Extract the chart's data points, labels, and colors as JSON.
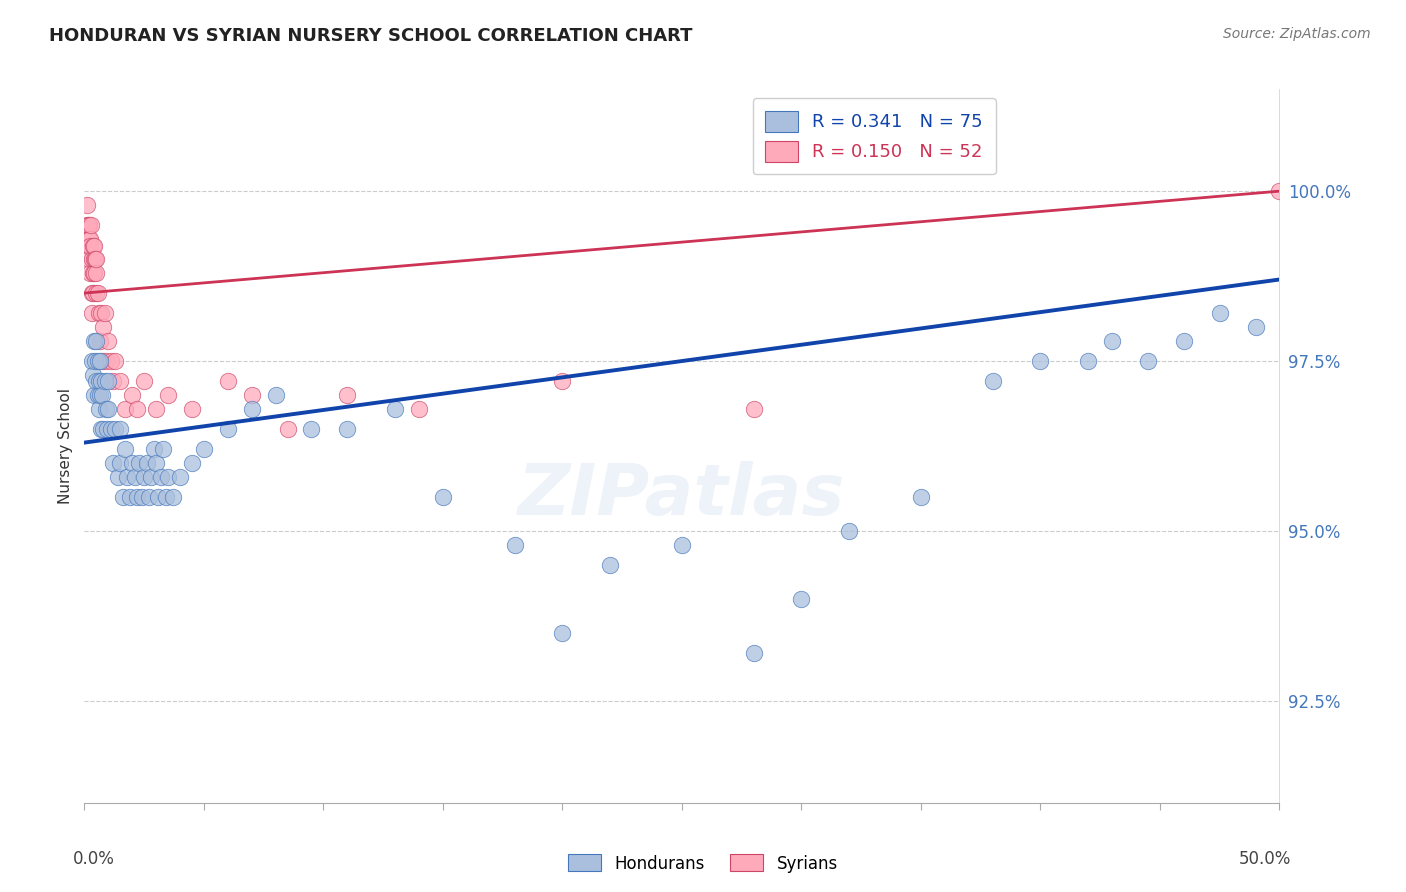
{
  "title": "HONDURAN VS SYRIAN NURSERY SCHOOL CORRELATION CHART",
  "source": "Source: ZipAtlas.com",
  "ylabel": "Nursery School",
  "ytick_labels": [
    "92.5%",
    "95.0%",
    "97.5%",
    "100.0%"
  ],
  "ytick_values": [
    92.5,
    95.0,
    97.5,
    100.0
  ],
  "xlim": [
    0.0,
    50.0
  ],
  "ylim": [
    91.0,
    101.5
  ],
  "legend_blue_r": "R = 0.341",
  "legend_blue_n": "N = 75",
  "legend_pink_r": "R = 0.150",
  "legend_pink_n": "N = 52",
  "blue_fill": "#AABFDD",
  "pink_fill": "#FFAABB",
  "blue_edge": "#4477BB",
  "pink_edge": "#CC4466",
  "blue_line": "#1144AA",
  "pink_line": "#CC3355",
  "bg": "#ffffff",
  "hondurans_x": [
    0.3,
    0.35,
    0.4,
    0.4,
    0.45,
    0.5,
    0.5,
    0.55,
    0.55,
    0.6,
    0.6,
    0.65,
    0.65,
    0.7,
    0.7,
    0.75,
    0.8,
    0.85,
    0.9,
    0.95,
    1.0,
    1.0,
    1.1,
    1.2,
    1.3,
    1.4,
    1.5,
    1.5,
    1.6,
    1.7,
    1.8,
    1.9,
    2.0,
    2.1,
    2.2,
    2.3,
    2.4,
    2.5,
    2.6,
    2.7,
    2.8,
    2.9,
    3.0,
    3.1,
    3.2,
    3.3,
    3.4,
    3.5,
    3.7,
    4.0,
    4.5,
    5.0,
    6.0,
    7.0,
    8.0,
    9.5,
    11.0,
    13.0,
    15.0,
    18.0,
    20.0,
    22.0,
    25.0,
    28.0,
    30.0,
    32.0,
    35.0,
    38.0,
    40.0,
    42.0,
    43.0,
    44.5,
    46.0,
    47.5,
    49.0
  ],
  "hondurans_y": [
    97.5,
    97.3,
    97.8,
    97.0,
    97.5,
    97.2,
    97.8,
    97.0,
    97.5,
    97.2,
    96.8,
    97.5,
    97.0,
    96.5,
    97.2,
    97.0,
    96.5,
    97.2,
    96.8,
    96.5,
    96.8,
    97.2,
    96.5,
    96.0,
    96.5,
    95.8,
    96.0,
    96.5,
    95.5,
    96.2,
    95.8,
    95.5,
    96.0,
    95.8,
    95.5,
    96.0,
    95.5,
    95.8,
    96.0,
    95.5,
    95.8,
    96.2,
    96.0,
    95.5,
    95.8,
    96.2,
    95.5,
    95.8,
    95.5,
    95.8,
    96.0,
    96.2,
    96.5,
    96.8,
    97.0,
    96.5,
    96.5,
    96.8,
    95.5,
    94.8,
    93.5,
    94.5,
    94.8,
    93.2,
    94.0,
    95.0,
    95.5,
    97.2,
    97.5,
    97.5,
    97.8,
    97.5,
    97.8,
    98.2,
    98.0
  ],
  "syrians_x": [
    0.1,
    0.12,
    0.15,
    0.15,
    0.18,
    0.2,
    0.2,
    0.22,
    0.25,
    0.25,
    0.28,
    0.3,
    0.3,
    0.32,
    0.35,
    0.35,
    0.38,
    0.4,
    0.4,
    0.42,
    0.45,
    0.48,
    0.5,
    0.5,
    0.55,
    0.6,
    0.65,
    0.7,
    0.75,
    0.8,
    0.85,
    0.9,
    1.0,
    1.1,
    1.2,
    1.3,
    1.5,
    1.7,
    2.0,
    2.2,
    2.5,
    3.0,
    3.5,
    4.5,
    6.0,
    7.0,
    8.5,
    11.0,
    14.0,
    20.0,
    28.0,
    50.0
  ],
  "syrians_y": [
    99.8,
    99.5,
    99.5,
    99.2,
    99.3,
    99.5,
    99.0,
    99.3,
    98.8,
    99.2,
    99.5,
    98.5,
    99.0,
    98.2,
    99.2,
    98.8,
    98.5,
    99.0,
    99.2,
    98.8,
    99.0,
    98.5,
    98.8,
    99.0,
    98.5,
    98.2,
    97.8,
    98.2,
    97.5,
    98.0,
    98.2,
    97.5,
    97.8,
    97.5,
    97.2,
    97.5,
    97.2,
    96.8,
    97.0,
    96.8,
    97.2,
    96.8,
    97.0,
    96.8,
    97.2,
    97.0,
    96.5,
    97.0,
    96.8,
    97.2,
    96.8,
    100.0
  ],
  "blue_trend_x": [
    0.0,
    50.0
  ],
  "blue_trend_y": [
    96.3,
    98.7
  ],
  "pink_trend_x": [
    0.0,
    50.0
  ],
  "pink_trend_y": [
    98.5,
    100.0
  ]
}
